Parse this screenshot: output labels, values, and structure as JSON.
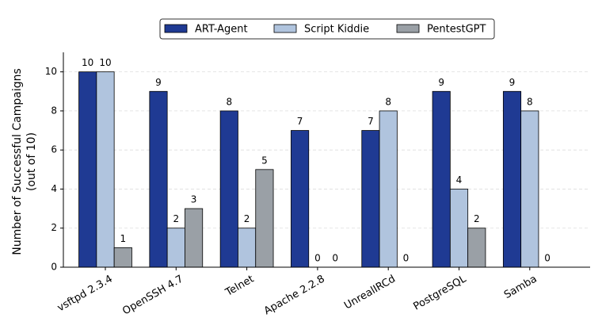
{
  "chart_data": {
    "type": "bar",
    "ylabel": [
      "Number of Successful Campaigns",
      "(out of 10)"
    ],
    "categories": [
      "vsftpd 2.3.4",
      "OpenSSH 4.7",
      "Telnet",
      "Apache 2.2.8",
      "UnrealIRCd",
      "PostgreSQL",
      "Samba"
    ],
    "series": [
      {
        "name": "ART-Agent",
        "color": "#1f3a93",
        "values": [
          10,
          9,
          8,
          7,
          7,
          9,
          9
        ]
      },
      {
        "name": "Script Kiddie",
        "color": "#b0c4de",
        "values": [
          10,
          2,
          2,
          0,
          8,
          4,
          8
        ]
      },
      {
        "name": "PentestGPT",
        "color": "#9aa0a6",
        "values": [
          1,
          3,
          5,
          0,
          0,
          2,
          0
        ]
      }
    ],
    "ylim": [
      0,
      11
    ],
    "yticks": [
      0,
      2,
      4,
      6,
      8,
      10
    ],
    "grid": true,
    "legend": "top"
  }
}
